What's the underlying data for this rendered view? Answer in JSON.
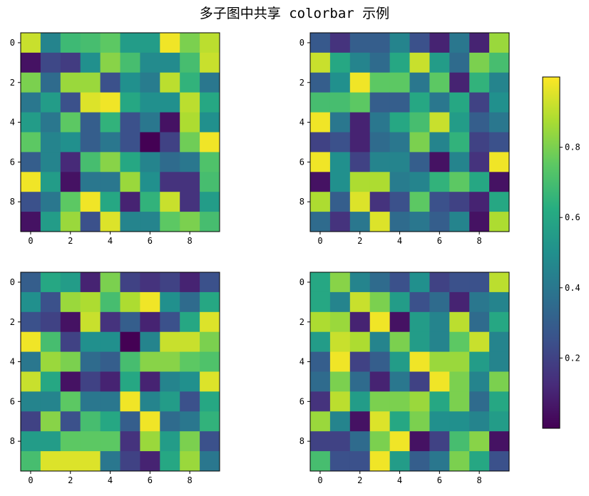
{
  "title": "多子图中共享 colorbar 示例",
  "chart_data": [
    {
      "type": "heatmap",
      "xticks": [
        0,
        2,
        4,
        6,
        8
      ],
      "yticks": [
        0,
        2,
        4,
        6,
        8
      ],
      "values": [
        [
          0.92,
          0.45,
          0.68,
          0.7,
          0.75,
          0.55,
          0.55,
          0.98,
          0.8,
          0.9
        ],
        [
          0.05,
          0.22,
          0.18,
          0.5,
          0.82,
          0.7,
          0.48,
          0.48,
          0.7,
          0.92
        ],
        [
          0.8,
          0.35,
          0.85,
          0.85,
          0.25,
          0.5,
          0.42,
          0.9,
          0.65,
          0.4
        ],
        [
          0.4,
          0.55,
          0.25,
          0.95,
          0.98,
          0.6,
          0.5,
          0.5,
          0.9,
          0.6
        ],
        [
          0.55,
          0.4,
          0.75,
          0.3,
          0.65,
          0.25,
          0.4,
          0.05,
          0.88,
          0.5
        ],
        [
          0.75,
          0.45,
          0.5,
          0.3,
          0.4,
          0.25,
          0.0,
          0.2,
          0.78,
          0.98
        ],
        [
          0.3,
          0.45,
          0.12,
          0.7,
          0.82,
          0.6,
          0.45,
          0.35,
          0.4,
          0.72
        ],
        [
          0.98,
          0.55,
          0.05,
          0.4,
          0.4,
          0.85,
          0.5,
          0.15,
          0.15,
          0.7
        ],
        [
          0.25,
          0.4,
          0.75,
          0.98,
          0.6,
          0.1,
          0.65,
          0.92,
          0.15,
          0.55
        ],
        [
          0.05,
          0.55,
          0.85,
          0.25,
          0.95,
          0.45,
          0.45,
          0.75,
          0.8,
          0.7
        ]
      ]
    },
    {
      "type": "heatmap",
      "xticks": [
        0,
        2,
        4,
        6,
        8
      ],
      "yticks": [
        0,
        2,
        4,
        6,
        8
      ],
      "values": [
        [
          0.28,
          0.15,
          0.3,
          0.3,
          0.45,
          0.25,
          0.1,
          0.4,
          0.1,
          0.85
        ],
        [
          0.92,
          0.6,
          0.45,
          0.35,
          0.6,
          0.92,
          0.55,
          0.35,
          0.8,
          0.7
        ],
        [
          0.3,
          0.5,
          0.98,
          0.75,
          0.75,
          0.4,
          0.75,
          0.1,
          0.65,
          0.45
        ],
        [
          0.7,
          0.7,
          0.75,
          0.3,
          0.3,
          0.6,
          0.4,
          0.6,
          0.2,
          0.5
        ],
        [
          0.98,
          0.4,
          0.1,
          0.4,
          0.6,
          0.7,
          0.92,
          0.55,
          0.3,
          0.4
        ],
        [
          0.2,
          0.25,
          0.1,
          0.35,
          0.4,
          0.8,
          0.45,
          0.65,
          0.2,
          0.25
        ],
        [
          0.98,
          0.5,
          0.2,
          0.45,
          0.45,
          0.3,
          0.05,
          0.45,
          0.15,
          0.98
        ],
        [
          0.05,
          0.5,
          0.88,
          0.88,
          0.42,
          0.45,
          0.65,
          0.75,
          0.6,
          0.05
        ],
        [
          0.88,
          0.3,
          0.95,
          0.15,
          0.25,
          0.75,
          0.25,
          0.2,
          0.1,
          0.6
        ],
        [
          0.35,
          0.15,
          0.4,
          0.95,
          0.35,
          0.4,
          0.3,
          0.45,
          0.05,
          0.88
        ]
      ]
    },
    {
      "type": "heatmap",
      "xticks": [
        0,
        2,
        4,
        6,
        8
      ],
      "yticks": [
        0,
        2,
        4,
        6,
        8
      ],
      "values": [
        [
          0.3,
          0.6,
          0.55,
          0.1,
          0.8,
          0.2,
          0.15,
          0.2,
          0.1,
          0.25
        ],
        [
          0.5,
          0.25,
          0.85,
          0.88,
          0.7,
          0.88,
          0.98,
          0.5,
          0.35,
          0.6
        ],
        [
          0.25,
          0.2,
          0.05,
          0.92,
          0.15,
          0.3,
          0.1,
          0.25,
          0.6,
          0.95
        ],
        [
          0.98,
          0.7,
          0.2,
          0.5,
          0.5,
          0.0,
          0.45,
          0.92,
          0.92,
          0.8
        ],
        [
          0.4,
          0.85,
          0.8,
          0.35,
          0.3,
          0.7,
          0.82,
          0.82,
          0.75,
          0.72
        ],
        [
          0.92,
          0.6,
          0.05,
          0.2,
          0.1,
          0.6,
          0.1,
          0.45,
          0.5,
          0.95
        ],
        [
          0.45,
          0.45,
          0.75,
          0.4,
          0.4,
          0.98,
          0.45,
          0.55,
          0.25,
          0.6
        ],
        [
          0.2,
          0.82,
          0.25,
          0.7,
          0.6,
          0.3,
          0.98,
          0.35,
          0.4,
          0.65
        ],
        [
          0.55,
          0.55,
          0.75,
          0.75,
          0.75,
          0.15,
          0.85,
          0.55,
          0.8,
          0.25
        ],
        [
          0.7,
          0.95,
          0.95,
          0.95,
          0.4,
          0.2,
          0.1,
          0.6,
          0.85,
          0.4
        ]
      ]
    },
    {
      "type": "heatmap",
      "xticks": [
        0,
        2,
        4,
        6,
        8
      ],
      "yticks": [
        0,
        2,
        4,
        6,
        8
      ],
      "values": [
        [
          0.6,
          0.82,
          0.45,
          0.35,
          0.25,
          0.5,
          0.2,
          0.25,
          0.25,
          0.9
        ],
        [
          0.6,
          0.45,
          0.92,
          0.8,
          0.55,
          0.25,
          0.35,
          0.1,
          0.4,
          0.45
        ],
        [
          0.88,
          0.85,
          0.1,
          0.98,
          0.05,
          0.55,
          0.45,
          0.9,
          0.35,
          0.6
        ],
        [
          0.55,
          0.92,
          0.88,
          0.45,
          0.8,
          0.55,
          0.45,
          0.75,
          0.92,
          0.45
        ],
        [
          0.3,
          0.98,
          0.2,
          0.3,
          0.55,
          0.98,
          0.85,
          0.85,
          0.55,
          0.45
        ],
        [
          0.35,
          0.8,
          0.35,
          0.1,
          0.4,
          0.2,
          0.98,
          0.8,
          0.45,
          0.8
        ],
        [
          0.15,
          0.9,
          0.55,
          0.8,
          0.8,
          0.85,
          0.6,
          0.8,
          0.35,
          0.6
        ],
        [
          0.85,
          0.45,
          0.05,
          0.95,
          0.6,
          0.8,
          0.5,
          0.5,
          0.45,
          0.55
        ],
        [
          0.2,
          0.2,
          0.35,
          0.8,
          0.98,
          0.05,
          0.2,
          0.7,
          0.82,
          0.05
        ],
        [
          0.7,
          0.25,
          0.25,
          0.98,
          0.55,
          0.3,
          0.4,
          0.8,
          0.6,
          0.25
        ]
      ]
    }
  ],
  "colorbar": {
    "ticks": [
      0.2,
      0.4,
      0.6,
      0.8
    ],
    "tick_labels": [
      "0.2",
      "0.4",
      "0.6",
      "0.8"
    ],
    "range": [
      0,
      1
    ],
    "colormap": "viridis"
  }
}
